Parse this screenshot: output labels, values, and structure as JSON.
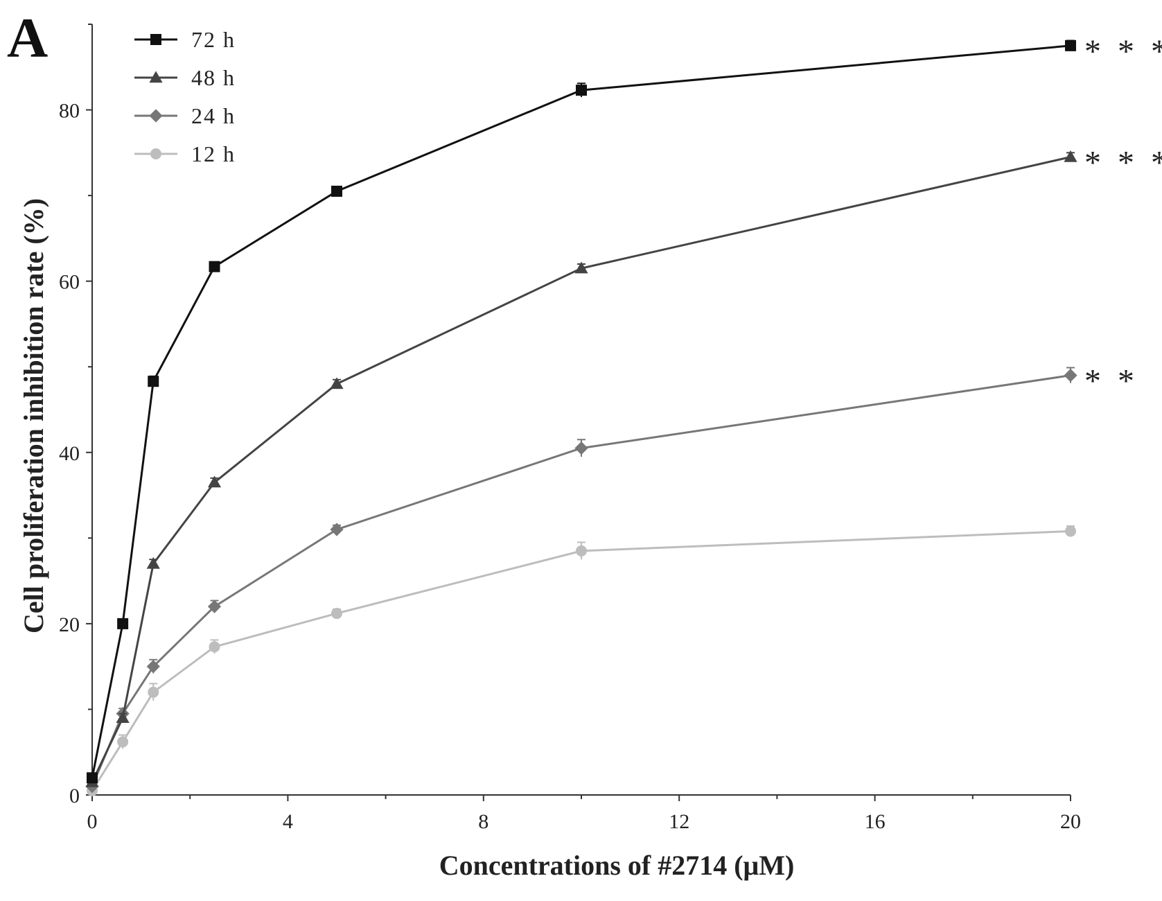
{
  "panel_label": "A",
  "chart_data": {
    "type": "line",
    "xlabel": "Concentrations of #2714 (μM)",
    "ylabel": "Cell proliferation inhibition rate (%)",
    "xlim": [
      0,
      20
    ],
    "ylim": [
      0,
      90
    ],
    "xticks": [
      0,
      4,
      8,
      12,
      16,
      20
    ],
    "yticks": [
      0,
      20,
      40,
      60,
      80
    ],
    "x": [
      0,
      0.625,
      1.25,
      2.5,
      5,
      10,
      20
    ],
    "legend_position": "top-left",
    "grid": false,
    "series": [
      {
        "name": "72 h",
        "marker": "square",
        "color": "#111111",
        "values": [
          2,
          20,
          48.3,
          61.7,
          70.5,
          82.3,
          87.5
        ],
        "errors": [
          0.5,
          0.5,
          0.6,
          0.5,
          0.5,
          0.8,
          0.6
        ],
        "significance": "* * *"
      },
      {
        "name": "48 h",
        "marker": "triangle",
        "color": "#444444",
        "values": [
          1.5,
          9,
          27,
          36.5,
          48,
          61.5,
          74.5
        ],
        "errors": [
          0.5,
          0.5,
          0.5,
          0.5,
          0.5,
          0.5,
          0.5
        ],
        "significance": "* * *"
      },
      {
        "name": "24 h",
        "marker": "diamond",
        "color": "#777777",
        "values": [
          1,
          9.5,
          15,
          22,
          31,
          40.5,
          49
        ],
        "errors": [
          0.4,
          0.6,
          0.8,
          0.7,
          0.5,
          1.0,
          0.9
        ],
        "significance": "* *"
      },
      {
        "name": "12 h",
        "marker": "circle",
        "color": "#bdbdbd",
        "values": [
          0.5,
          6.2,
          12,
          17.3,
          21.2,
          28.5,
          30.8
        ],
        "errors": [
          0.4,
          0.8,
          1.0,
          0.8,
          0.5,
          1.0,
          0.6
        ],
        "significance": ""
      }
    ]
  }
}
